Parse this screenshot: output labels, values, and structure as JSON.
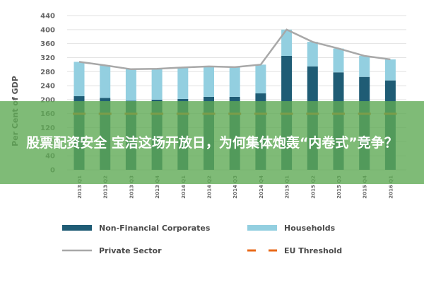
{
  "chart_data": {
    "type": "bar",
    "stacked": true,
    "categories": [
      "2013 Q1",
      "2013 Q2",
      "2013 Q3",
      "2013 Q4",
      "2014 Q1",
      "2014 Q2",
      "2014 Q3",
      "2014 Q4",
      "2015 Q1",
      "2015 Q2",
      "2015 Q3",
      "2015 Q4",
      "2016 Q1"
    ],
    "series": [
      {
        "name": "Non-Financial Corporates",
        "type": "bar",
        "color": "#1f5c75",
        "values": [
          210,
          205,
          197,
          200,
          202,
          208,
          208,
          218,
          325,
          295,
          278,
          265,
          255
        ]
      },
      {
        "name": "Households",
        "type": "bar",
        "color": "#93cfe0",
        "values": [
          98,
          93,
          90,
          88,
          90,
          87,
          85,
          82,
          75,
          70,
          68,
          60,
          60
        ]
      },
      {
        "name": "Private Sector",
        "type": "line",
        "color": "#a8a8a8",
        "values": [
          308,
          298,
          287,
          288,
          292,
          295,
          293,
          300,
          400,
          365,
          346,
          325,
          315
        ]
      },
      {
        "name": "EU Threshold",
        "type": "line",
        "style": "dashed",
        "color": "#e86a1a",
        "values": [
          160,
          160,
          160,
          160,
          160,
          160,
          160,
          160,
          160,
          160,
          160,
          160,
          160
        ]
      }
    ],
    "ylabel": "Per Cent of GDP",
    "ylim": [
      0,
      440
    ],
    "yticks": [
      0,
      40,
      80,
      120,
      160,
      200,
      240,
      280,
      320,
      360,
      400,
      440
    ],
    "grid": true,
    "legend_position": "bottom"
  },
  "overlay": {
    "text": "股票配资安全 宝洁这场开放日，为何集体炮轰“内卷式”竞争？",
    "color": "#5faa55"
  }
}
